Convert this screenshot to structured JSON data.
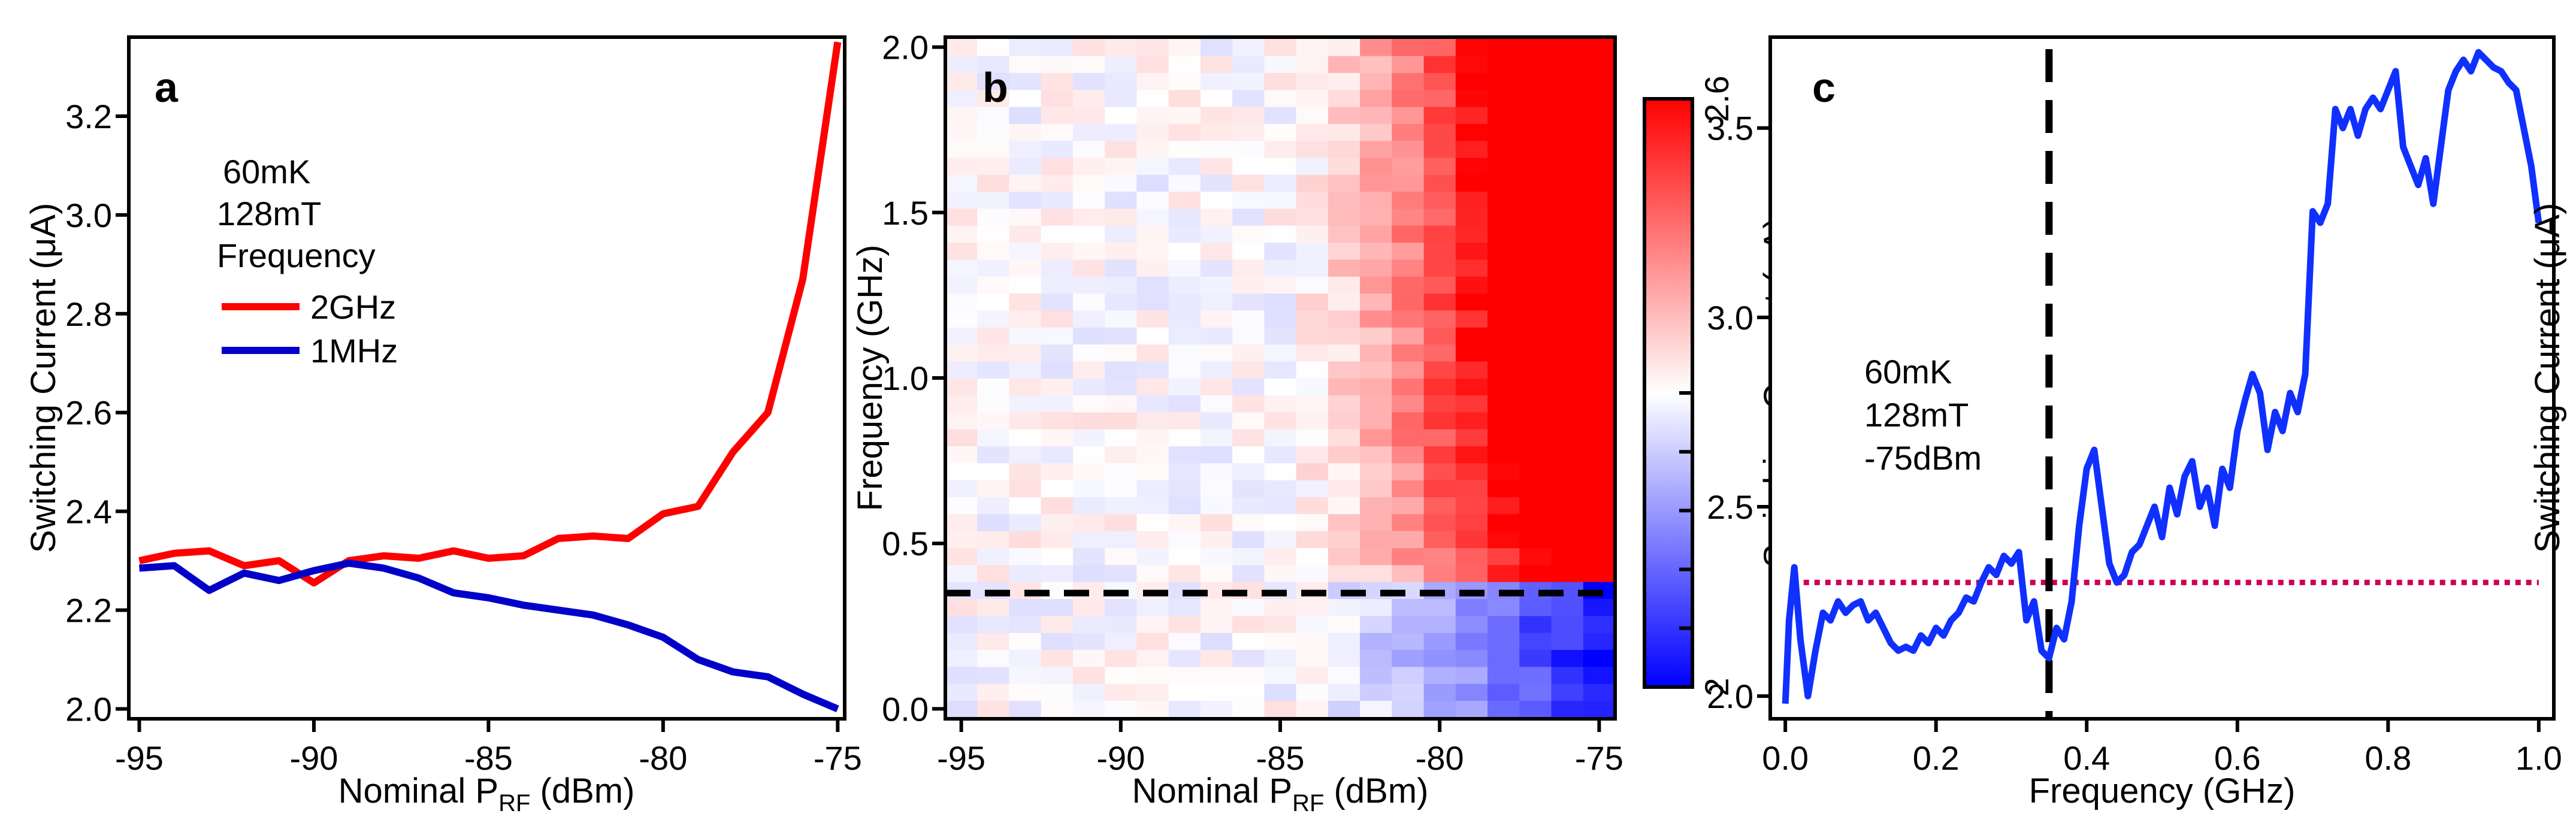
{
  "chart_data": [
    {
      "panel": "a",
      "type": "line",
      "xlabel_main": "Nominal P",
      "xlabel_sub": "RF",
      "xlabel_unit": " (dBm)",
      "ylabel": "Switching Current (μA)",
      "xlim": [
        -95.3,
        -74.8
      ],
      "ylim": [
        1.98,
        3.36
      ],
      "xticks": [
        -95,
        -90,
        -85,
        -80,
        -75
      ],
      "xtick_labels": [
        "-95",
        "-90",
        "-85",
        "-80",
        "-75"
      ],
      "yticks": [
        2.0,
        2.2,
        2.4,
        2.6,
        2.8,
        3.0,
        3.2
      ],
      "ytick_labels": [
        "2.0",
        "2.2",
        "2.4",
        "2.6",
        "2.8",
        "3.0",
        "3.2"
      ],
      "annotations": [
        "60mK",
        "128mT",
        "Frequency"
      ],
      "legend_position": "top-left",
      "series": [
        {
          "name": "2GHz",
          "color": "#ff0000",
          "x": [
            -95,
            -94,
            -93,
            -92,
            -91,
            -90,
            -89,
            -88,
            -87,
            -86,
            -85,
            -84,
            -83,
            -82,
            -81,
            -80,
            -79,
            -78,
            -77,
            -76,
            -75
          ],
          "values": [
            2.3,
            2.315,
            2.32,
            2.29,
            2.3,
            2.255,
            2.3,
            2.31,
            2.305,
            2.32,
            2.305,
            2.31,
            2.345,
            2.35,
            2.345,
            2.395,
            2.41,
            2.52,
            2.6,
            2.87,
            3.35
          ]
        },
        {
          "name": "1MHz",
          "color": "#0000c8",
          "x": [
            -95,
            -94,
            -93,
            -92,
            -91,
            -90,
            -89,
            -88,
            -87,
            -86,
            -85,
            -84,
            -83,
            -82,
            -81,
            -80,
            -79,
            -78,
            -77,
            -76,
            -75
          ],
          "values": [
            2.285,
            2.29,
            2.24,
            2.275,
            2.26,
            2.28,
            2.295,
            2.285,
            2.265,
            2.235,
            2.225,
            2.21,
            2.2,
            2.19,
            2.17,
            2.145,
            2.1,
            2.075,
            2.065,
            2.03,
            2.0
          ]
        }
      ]
    },
    {
      "panel": "b",
      "type": "heatmap",
      "xlabel_main": "Nominal P",
      "xlabel_sub": "RF",
      "xlabel_unit": " (dBm)",
      "ylabel": "Frequency (GHz)",
      "colorbar_label": "Switching Current (μA)",
      "xlim": [
        -95.5,
        -74.5
      ],
      "ylim": [
        -0.03,
        2.03
      ],
      "xticks": [
        -95,
        -90,
        -85,
        -80,
        -75
      ],
      "xtick_labels": [
        "-95",
        "-90",
        "-85",
        "-80",
        "-75"
      ],
      "yticks": [
        0.0,
        0.5,
        1.0,
        1.5,
        2.0
      ],
      "ytick_labels": [
        "0.0",
        "0.5",
        "1.0",
        "1.5",
        "2.0"
      ],
      "colorbar_range": [
        2.0,
        2.6
      ],
      "colorbar_ticks": [
        2.0,
        2.6
      ],
      "colorbar_tick_labels": [
        "2",
        "2.6"
      ],
      "colormap": [
        "#0000ff",
        "#ffffff",
        "#ff0000"
      ],
      "dashed_line_frequency": 0.35,
      "x": [
        -95,
        -94,
        -93,
        -92,
        -91,
        -90,
        -89,
        -88,
        -87,
        -86,
        -85,
        -84,
        -83,
        -82,
        -81,
        -80,
        -79,
        -78,
        -77,
        -76,
        -75
      ],
      "y_range": [
        0.0,
        2.0
      ],
      "y_count": 40,
      "values_description": "Switching current rises toward 2.6 μA (red) above ~0.4 GHz at high power (-80 to -75 dBm); below 0.35 GHz values drop toward 2.0 μA (blue) at high power; near 2.3 μA (white) at low power."
    },
    {
      "panel": "c",
      "type": "line",
      "xlabel": "Frequency (GHz)",
      "ylabel": "Switching Current (μA)",
      "xlim": [
        -0.02,
        1.02
      ],
      "ylim": [
        1.94,
        3.74
      ],
      "xticks": [
        0.0,
        0.2,
        0.4,
        0.6,
        0.8,
        1.0
      ],
      "xtick_labels": [
        "0.0",
        "0.2",
        "0.4",
        "0.6",
        "0.8",
        "1.0"
      ],
      "yticks": [
        2.0,
        2.5,
        3.0,
        3.5
      ],
      "ytick_labels": [
        "2.0",
        "2.5",
        "3.0",
        "3.5"
      ],
      "annotations": [
        "60mK",
        "128mT",
        "-75dBm"
      ],
      "dashed_vertical_x": 0.35,
      "dotted_horizontal_y": 2.3,
      "series": [
        {
          "name": "-75dBm",
          "color": "#1030ff",
          "x": [
            0.0,
            0.005,
            0.012,
            0.02,
            0.03,
            0.04,
            0.05,
            0.06,
            0.07,
            0.08,
            0.09,
            0.1,
            0.11,
            0.12,
            0.13,
            0.14,
            0.15,
            0.16,
            0.17,
            0.18,
            0.19,
            0.2,
            0.21,
            0.22,
            0.23,
            0.24,
            0.25,
            0.26,
            0.27,
            0.28,
            0.29,
            0.3,
            0.31,
            0.32,
            0.33,
            0.34,
            0.35,
            0.36,
            0.37,
            0.38,
            0.39,
            0.4,
            0.41,
            0.42,
            0.43,
            0.44,
            0.45,
            0.46,
            0.47,
            0.48,
            0.49,
            0.5,
            0.51,
            0.52,
            0.53,
            0.54,
            0.55,
            0.56,
            0.57,
            0.58,
            0.59,
            0.6,
            0.61,
            0.62,
            0.63,
            0.64,
            0.65,
            0.66,
            0.67,
            0.68,
            0.69,
            0.7,
            0.71,
            0.72,
            0.73,
            0.74,
            0.75,
            0.76,
            0.77,
            0.78,
            0.79,
            0.8,
            0.81,
            0.82,
            0.83,
            0.84,
            0.85,
            0.86,
            0.87,
            0.88,
            0.89,
            0.9,
            0.91,
            0.92,
            0.93,
            0.94,
            0.95,
            0.96,
            0.97,
            0.98,
            0.99,
            1.0
          ],
          "values": [
            1.98,
            2.2,
            2.34,
            2.15,
            2.0,
            2.12,
            2.22,
            2.2,
            2.25,
            2.22,
            2.24,
            2.25,
            2.2,
            2.22,
            2.18,
            2.14,
            2.12,
            2.13,
            2.12,
            2.16,
            2.14,
            2.18,
            2.16,
            2.2,
            2.22,
            2.26,
            2.25,
            2.3,
            2.34,
            2.32,
            2.37,
            2.35,
            2.38,
            2.2,
            2.25,
            2.12,
            2.1,
            2.18,
            2.15,
            2.25,
            2.45,
            2.6,
            2.65,
            2.5,
            2.35,
            2.3,
            2.32,
            2.38,
            2.4,
            2.45,
            2.5,
            2.42,
            2.55,
            2.48,
            2.58,
            2.62,
            2.5,
            2.55,
            2.45,
            2.6,
            2.55,
            2.7,
            2.78,
            2.85,
            2.8,
            2.65,
            2.75,
            2.7,
            2.8,
            2.75,
            2.85,
            3.28,
            3.25,
            3.3,
            3.55,
            3.5,
            3.55,
            3.48,
            3.55,
            3.58,
            3.55,
            3.6,
            3.65,
            3.45,
            3.4,
            3.35,
            3.42,
            3.3,
            3.45,
            3.6,
            3.65,
            3.68,
            3.65,
            3.7,
            3.68,
            3.66,
            3.65,
            3.62,
            3.6,
            3.5,
            3.4,
            3.25
          ]
        }
      ]
    }
  ]
}
